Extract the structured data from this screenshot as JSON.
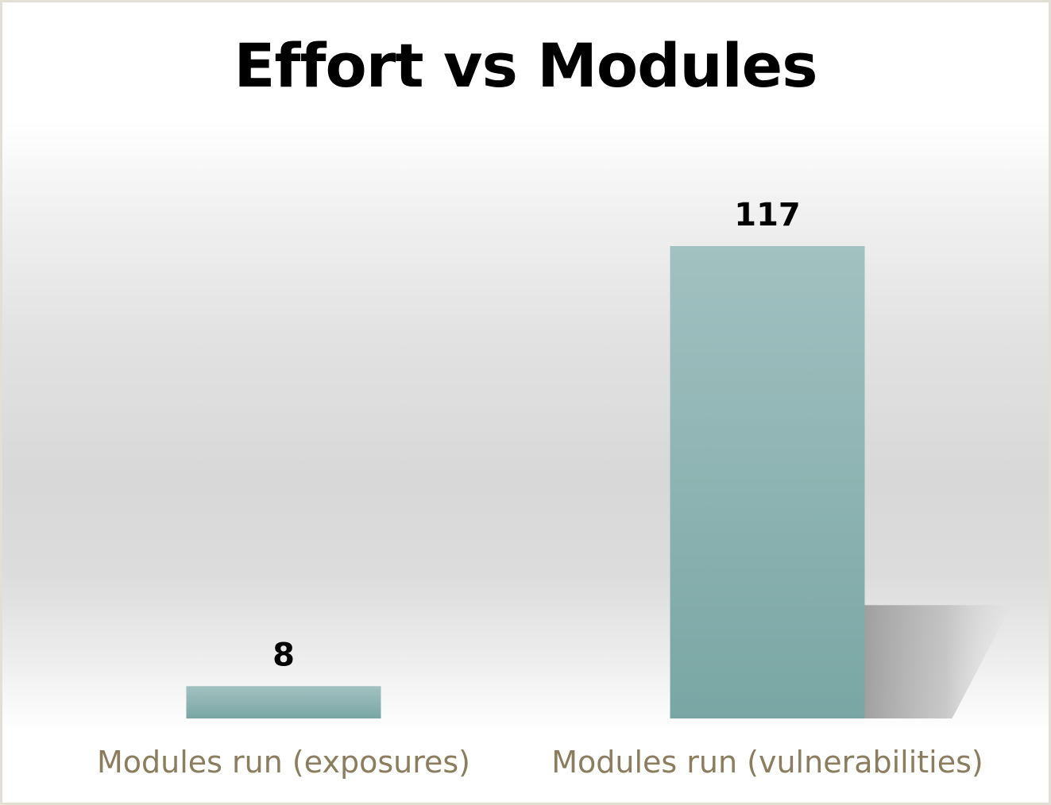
{
  "chart_data": {
    "type": "bar",
    "title": "Effort vs Modules",
    "categories": [
      "Modules run (exposures)",
      "Modules run (vulnerabilities)"
    ],
    "values": [
      8,
      117
    ],
    "xlabel": "",
    "ylabel": "",
    "ylim": [
      0,
      117
    ],
    "grid": false,
    "legend": "none",
    "data_labels": true,
    "colors": {
      "bar_top": "#a2c1c1",
      "bar_bottom": "#79a6a4",
      "category_text": "#8b7d5e",
      "value_text": "#000000",
      "frame_border": "#e2e0d6"
    }
  }
}
